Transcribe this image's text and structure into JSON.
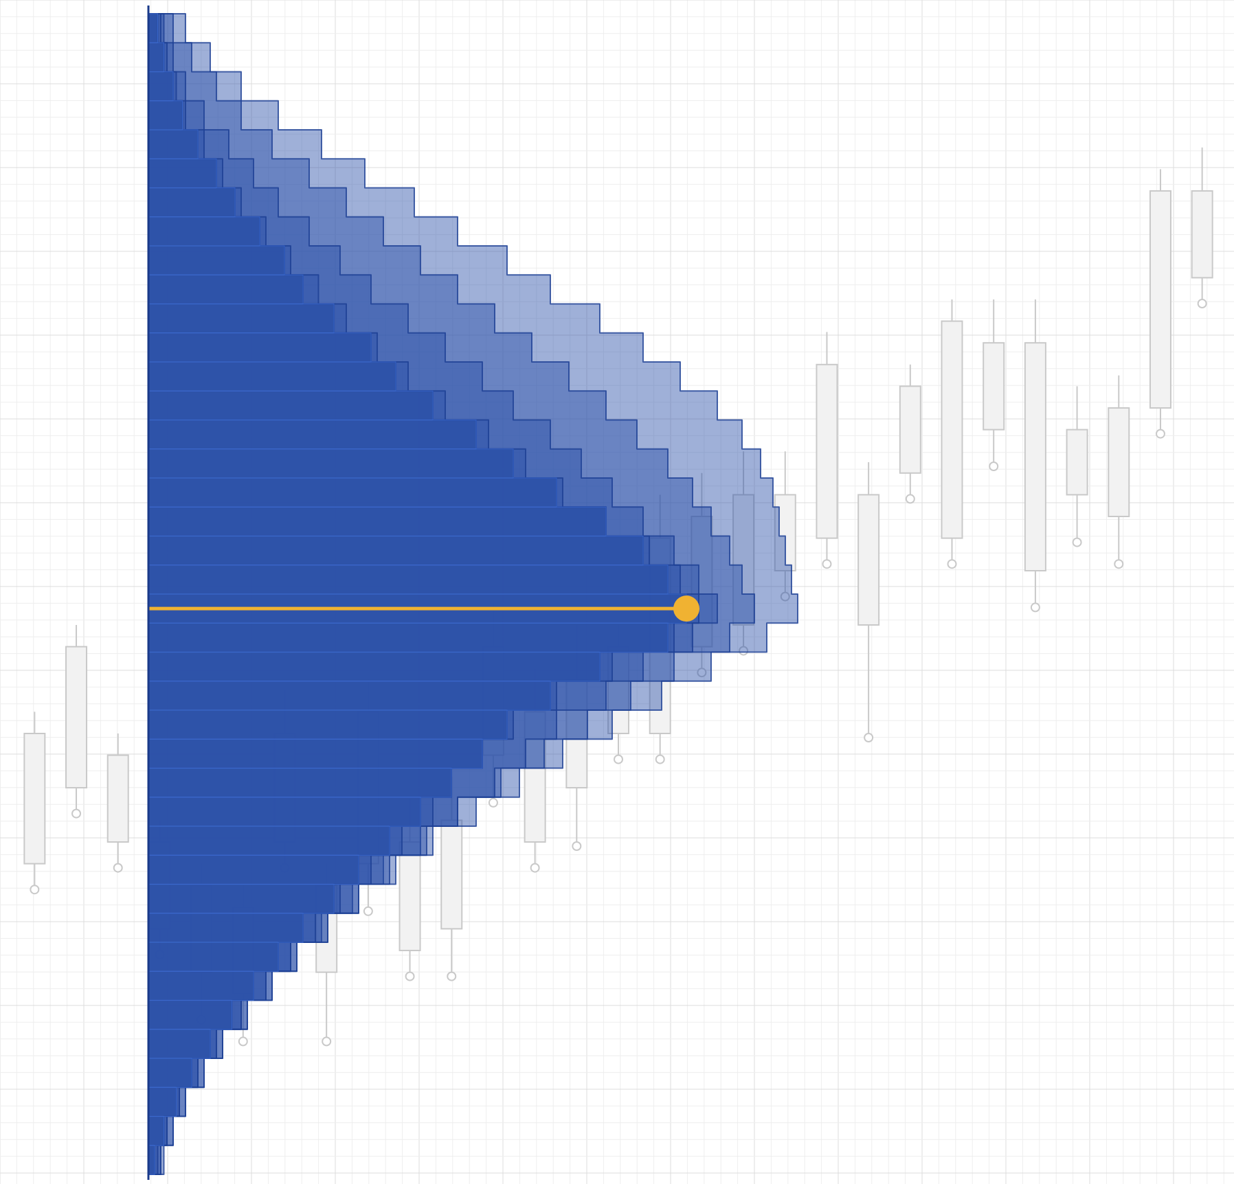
{
  "chart_data": {
    "type": "area",
    "title": "",
    "xlabel": "",
    "ylabel": "",
    "grid": true,
    "ylim": [
      0,
      100
    ],
    "volume_profile": {
      "orientation": "horizontal",
      "bins": 40,
      "series": [
        {
          "name": "",
          "values": [
            3,
            5,
            8,
            11,
            16,
            22,
            28,
            36,
            44,
            50,
            60,
            72,
            80,
            92,
            106,
            118,
            132,
            148,
            160,
            168,
            174,
            168,
            146,
            130,
            116,
            108,
            98,
            88,
            78,
            68,
            60,
            50,
            42,
            34,
            27,
            20,
            14,
            9,
            5,
            2
          ]
        },
        {
          "name": "",
          "values": [
            4,
            6,
            9,
            12,
            18,
            24,
            30,
            38,
            46,
            55,
            64,
            74,
            84,
            96,
            110,
            122,
            134,
            148,
            162,
            172,
            178,
            170,
            150,
            132,
            118,
            108,
            98,
            92,
            82,
            72,
            62,
            54,
            46,
            38,
            30,
            22,
            16,
            10,
            6,
            3
          ]
        },
        {
          "name": "",
          "values": [
            5,
            8,
            12,
            18,
            26,
            34,
            42,
            52,
            62,
            72,
            84,
            96,
            108,
            118,
            130,
            140,
            150,
            160,
            170,
            178,
            184,
            176,
            160,
            148,
            132,
            122,
            112,
            100,
            90,
            78,
            68,
            58,
            48,
            40,
            32,
            24,
            18,
            12,
            8,
            4
          ]
        },
        {
          "name": "",
          "values": [
            8,
            14,
            22,
            30,
            40,
            52,
            64,
            76,
            88,
            100,
            112,
            124,
            136,
            148,
            158,
            168,
            176,
            182,
            188,
            192,
            196,
            188,
            170,
            156,
            142,
            128,
            114,
            100,
            88,
            76,
            66,
            56,
            46,
            38,
            30,
            22,
            16,
            10,
            6,
            4
          ]
        },
        {
          "name": "",
          "values": [
            12,
            20,
            30,
            42,
            56,
            70,
            86,
            100,
            116,
            130,
            146,
            160,
            172,
            184,
            192,
            198,
            202,
            204,
            206,
            208,
            210,
            200,
            182,
            166,
            150,
            134,
            120,
            106,
            92,
            80,
            68,
            58,
            48,
            40,
            32,
            24,
            18,
            12,
            8,
            5
          ]
        }
      ],
      "poc": {
        "bin": 20,
        "value": 174
      }
    },
    "candles": [
      {
        "x": 1,
        "open": 28,
        "close": 40,
        "high": 42,
        "low": 26
      },
      {
        "x": 2,
        "open": 35,
        "close": 48,
        "high": 50,
        "low": 33
      },
      {
        "x": 3,
        "open": 30,
        "close": 38,
        "high": 40,
        "low": 28
      },
      {
        "x": 4,
        "open": 22,
        "close": 30,
        "high": 32,
        "low": 20
      },
      {
        "x": 5,
        "open": 18,
        "close": 26,
        "high": 28,
        "low": 14
      },
      {
        "x": 6,
        "open": 16,
        "close": 24,
        "high": 26,
        "low": 12
      },
      {
        "x": 7,
        "open": 30,
        "close": 40,
        "high": 44,
        "low": 28
      },
      {
        "x": 8,
        "open": 18,
        "close": 26,
        "high": 28,
        "low": 12
      },
      {
        "x": 9,
        "open": 28,
        "close": 42,
        "high": 45,
        "low": 24
      },
      {
        "x": 10,
        "open": 20,
        "close": 30,
        "high": 34,
        "low": 18
      },
      {
        "x": 11,
        "open": 22,
        "close": 32,
        "high": 36,
        "low": 18
      },
      {
        "x": 12,
        "open": 38,
        "close": 48,
        "high": 52,
        "low": 34
      },
      {
        "x": 13,
        "open": 30,
        "close": 42,
        "high": 46,
        "low": 28
      },
      {
        "x": 14,
        "open": 35,
        "close": 45,
        "high": 50,
        "low": 30
      },
      {
        "x": 15,
        "open": 40,
        "close": 48,
        "high": 50,
        "low": 38
      },
      {
        "x": 16,
        "open": 40,
        "close": 58,
        "high": 62,
        "low": 38
      },
      {
        "x": 17,
        "open": 48,
        "close": 60,
        "high": 64,
        "low": 46
      },
      {
        "x": 18,
        "open": 50,
        "close": 62,
        "high": 66,
        "low": 48
      },
      {
        "x": 19,
        "open": 55,
        "close": 62,
        "high": 66,
        "low": 53
      },
      {
        "x": 20,
        "open": 58,
        "close": 74,
        "high": 77,
        "low": 56
      },
      {
        "x": 21,
        "open": 50,
        "close": 62,
        "high": 65,
        "low": 40
      },
      {
        "x": 22,
        "open": 64,
        "close": 72,
        "high": 74,
        "low": 62
      },
      {
        "x": 23,
        "open": 58,
        "close": 78,
        "high": 80,
        "low": 56
      },
      {
        "x": 24,
        "open": 68,
        "close": 76,
        "high": 80,
        "low": 65
      },
      {
        "x": 25,
        "open": 55,
        "close": 76,
        "high": 80,
        "low": 52
      },
      {
        "x": 26,
        "open": 62,
        "close": 68,
        "high": 72,
        "low": 58
      },
      {
        "x": 27,
        "open": 60,
        "close": 70,
        "high": 73,
        "low": 56
      },
      {
        "x": 28,
        "open": 70,
        "close": 90,
        "high": 92,
        "low": 68
      },
      {
        "x": 29,
        "open": 82,
        "close": 90,
        "high": 94,
        "low": 80
      }
    ],
    "colors": {
      "profile_fill": "#2a50a8",
      "profile_stroke": "#1c3f93",
      "poc_line": "#f0b232",
      "poc_marker": "#f0b232",
      "candle_stroke": "#c9c9c9",
      "candle_fill": "#f2f2f2",
      "grid_minor": "#eeeeee",
      "grid_major": "#dcdcdc"
    }
  }
}
